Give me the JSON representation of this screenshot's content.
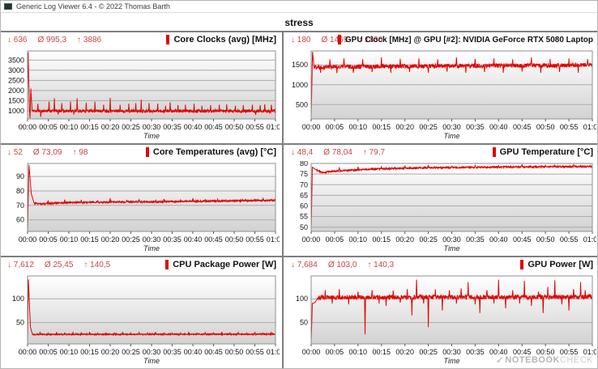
{
  "window": {
    "title": "Generic Log Viewer 6.4 - © 2022 Thomas Barth"
  },
  "page_title": "stress",
  "watermark": {
    "check": "✓",
    "text_bold": "NOTEBOOK",
    "text_light": "CHECK"
  },
  "colors": {
    "accent_red": "#e10600",
    "stats_red": "#c94444",
    "line_red": "#e00400",
    "grid": "#ababab",
    "plot_border": "#8f8f8f",
    "divider": "#7f7f7f",
    "watermark_gray": "#c2c2c2"
  },
  "chart_data": [
    {
      "type": "line",
      "title": "Core Clocks (avg) [MHz]",
      "stats": {
        "min": "↓ 636",
        "avg": "Ø 995,3",
        "max": "↑ 3886"
      },
      "xlabel": "Time",
      "ylabel": "",
      "x_range_minutes": [
        0,
        60
      ],
      "xticks": [
        "00:00",
        "00:05",
        "00:10",
        "00:15",
        "00:20",
        "00:25",
        "00:30",
        "00:35",
        "00:40",
        "00:45",
        "00:50",
        "00:55",
        "01:00"
      ],
      "yticks": [
        1000,
        1500,
        2000,
        2500,
        3000,
        3500
      ],
      "ylim": [
        600,
        3950
      ],
      "profile": {
        "seed": 11,
        "noise": 75,
        "noise_start": 1.1,
        "keypoints": [
          [
            0,
            1990
          ],
          [
            0.15,
            3886
          ],
          [
            0.45,
            1100
          ],
          [
            0.6,
            636
          ],
          [
            0.8,
            2100
          ],
          [
            1.1,
            1000
          ],
          [
            60,
            985
          ]
        ],
        "spikes": [
          [
            2.5,
            1350
          ],
          [
            3.2,
            700
          ],
          [
            5.2,
            1450
          ],
          [
            6.5,
            1620
          ],
          [
            7.4,
            820
          ],
          [
            8.3,
            1380
          ],
          [
            10.4,
            1450
          ],
          [
            11.2,
            820
          ],
          [
            12,
            1620
          ],
          [
            14.2,
            1400
          ],
          [
            16.3,
            1450
          ],
          [
            18.4,
            1300
          ],
          [
            20,
            1640
          ],
          [
            22.4,
            1300
          ],
          [
            24.5,
            1350
          ],
          [
            26.2,
            1380
          ],
          [
            27.5,
            1550
          ],
          [
            29.4,
            1380
          ],
          [
            31.5,
            1350
          ],
          [
            33.4,
            1250
          ],
          [
            34.5,
            1420
          ],
          [
            36.4,
            1280
          ],
          [
            38.2,
            1300
          ],
          [
            40.3,
            1350
          ],
          [
            42.2,
            1250
          ],
          [
            44.3,
            1280
          ],
          [
            46.4,
            1300
          ],
          [
            48.2,
            1320
          ],
          [
            50.3,
            1250
          ],
          [
            52.2,
            1280
          ],
          [
            54.4,
            1300
          ],
          [
            55.2,
            800
          ],
          [
            56.3,
            1280
          ],
          [
            57.4,
            1320
          ],
          [
            59,
            1300
          ]
        ]
      }
    },
    {
      "type": "line",
      "title": "GPU Clock [MHz] @ GPU [#2]: NVIDIA GeForce RTX 5080 Laptop",
      "stats": {
        "min": "↓ 180",
        "avg": "Ø 1469",
        "max": "↑ 1830"
      },
      "xlabel": "Time",
      "ylabel": "",
      "x_range_minutes": [
        0,
        60
      ],
      "xticks": [
        "00:00",
        "00:05",
        "00:10",
        "00:15",
        "00:20",
        "00:25",
        "00:30",
        "00:35",
        "00:40",
        "00:45",
        "00:50",
        "00:55",
        "01:00"
      ],
      "yticks": [
        500,
        1000,
        1500
      ],
      "ylim": [
        140,
        1850
      ],
      "profile": {
        "seed": 22,
        "noise": 55,
        "noise_start": 0.6,
        "keypoints": [
          [
            0,
            180
          ],
          [
            0.3,
            1830
          ],
          [
            0.6,
            1450
          ],
          [
            60,
            1495
          ]
        ],
        "spikes": [
          [
            2,
            1300
          ],
          [
            4,
            1640
          ],
          [
            5.5,
            1290
          ],
          [
            7,
            1660
          ],
          [
            9,
            1300
          ],
          [
            11,
            1640
          ],
          [
            13,
            1320
          ],
          [
            15,
            1690
          ],
          [
            17,
            1300
          ],
          [
            19,
            1650
          ],
          [
            21,
            1320
          ],
          [
            23,
            1660
          ],
          [
            25,
            1300
          ],
          [
            27,
            1640
          ],
          [
            29,
            1330
          ],
          [
            31,
            1690
          ],
          [
            33,
            1300
          ],
          [
            35,
            1650
          ],
          [
            37,
            1320
          ],
          [
            39,
            1660
          ],
          [
            41,
            1300
          ],
          [
            43,
            1640
          ],
          [
            45,
            1330
          ],
          [
            47,
            1690
          ],
          [
            49,
            1300
          ],
          [
            51,
            1650
          ],
          [
            53,
            1320
          ],
          [
            55,
            1660
          ],
          [
            57,
            1300
          ],
          [
            59,
            1640
          ]
        ]
      }
    },
    {
      "type": "line",
      "title": "Core Temperatures (avg) [°C]",
      "stats": {
        "min": "↓ 52",
        "avg": "Ø 73,09",
        "max": "↑ 98"
      },
      "xlabel": "Time",
      "ylabel": "",
      "x_range_minutes": [
        0,
        60
      ],
      "xticks": [
        "00:00",
        "00:05",
        "00:10",
        "00:15",
        "00:20",
        "00:25",
        "00:30",
        "00:35",
        "00:40",
        "00:45",
        "00:50",
        "00:55",
        "01:00"
      ],
      "yticks": [
        60,
        70,
        80,
        90
      ],
      "ylim": [
        52,
        99
      ],
      "profile": {
        "seed": 33,
        "noise": 0.55,
        "noise_start": 1.6,
        "keypoints": [
          [
            0,
            52
          ],
          [
            0.35,
            98
          ],
          [
            0.9,
            78
          ],
          [
            1.6,
            71.5
          ],
          [
            3,
            71
          ],
          [
            10,
            72
          ],
          [
            30,
            72.5
          ],
          [
            60,
            73.5
          ]
        ],
        "spikes": [
          [
            5,
            73.5
          ],
          [
            9,
            74
          ],
          [
            13,
            73.8
          ],
          [
            17,
            73.5
          ],
          [
            20,
            75
          ],
          [
            24,
            73.8
          ],
          [
            27,
            74
          ],
          [
            31,
            73.6
          ],
          [
            33,
            74.5
          ],
          [
            37,
            73.8
          ],
          [
            40,
            75
          ],
          [
            43,
            74
          ],
          [
            46,
            74.2
          ],
          [
            49,
            73.8
          ],
          [
            52,
            74.5
          ],
          [
            55,
            74
          ],
          [
            57,
            74.8
          ],
          [
            59,
            74.2
          ]
        ]
      }
    },
    {
      "type": "line",
      "title": "GPU Temperature [°C]",
      "stats": {
        "min": "↓ 48,4",
        "avg": "Ø 78,04",
        "max": "↑ 79,7"
      },
      "xlabel": "Time",
      "ylabel": "",
      "x_range_minutes": [
        0,
        60
      ],
      "xticks": [
        "00:00",
        "00:05",
        "00:10",
        "00:15",
        "00:20",
        "00:25",
        "00:30",
        "00:35",
        "00:40",
        "00:45",
        "00:50",
        "00:55",
        "01:00"
      ],
      "yticks": [
        50,
        55,
        60,
        65,
        70,
        75,
        80
      ],
      "ylim": [
        48,
        80
      ],
      "profile": {
        "seed": 44,
        "noise": 0.4,
        "noise_start": 1.2,
        "keypoints": [
          [
            0,
            48.4
          ],
          [
            0.25,
            78.2
          ],
          [
            1.2,
            76.8
          ],
          [
            2.5,
            75.7
          ],
          [
            4,
            76.2
          ],
          [
            8,
            76.8
          ],
          [
            15,
            77.5
          ],
          [
            25,
            78
          ],
          [
            40,
            78.3
          ],
          [
            60,
            78.6
          ]
        ],
        "spikes": [
          [
            6,
            78.2
          ],
          [
            10,
            78.5
          ],
          [
            15,
            78.8
          ],
          [
            20,
            79
          ],
          [
            25,
            79.3
          ],
          [
            30,
            78.8
          ],
          [
            35,
            79
          ],
          [
            40,
            79.2
          ],
          [
            45,
            79.7
          ],
          [
            50,
            79
          ],
          [
            52,
            79.2
          ],
          [
            56,
            79.4
          ],
          [
            58,
            79
          ]
        ]
      }
    },
    {
      "type": "line",
      "title": "CPU Package Power [W]",
      "stats": {
        "min": "↓ 7,612",
        "avg": "Ø 25,45",
        "max": "↑ 140,5"
      },
      "xlabel": "Time",
      "ylabel": "",
      "x_range_minutes": [
        0,
        60
      ],
      "xticks": [
        "00:00",
        "00:05",
        "00:10",
        "00:15",
        "00:20",
        "00:25",
        "00:30",
        "00:35",
        "00:40",
        "00:45",
        "00:50",
        "00:55",
        "01:00"
      ],
      "yticks": [
        50,
        100
      ],
      "ylim": [
        5,
        148
      ],
      "profile": {
        "seed": 55,
        "noise": 1.1,
        "noise_start": 1.2,
        "keypoints": [
          [
            0,
            7.6
          ],
          [
            0.2,
            140.5
          ],
          [
            0.7,
            40
          ],
          [
            1.2,
            25
          ],
          [
            60,
            25.5
          ]
        ],
        "spikes": [
          [
            3,
            29
          ],
          [
            5,
            28
          ],
          [
            7,
            30
          ],
          [
            9,
            28
          ],
          [
            11,
            29
          ],
          [
            13,
            28
          ],
          [
            15,
            30
          ],
          [
            17,
            28
          ],
          [
            19,
            29
          ],
          [
            21,
            28
          ],
          [
            23,
            30
          ],
          [
            25,
            28
          ],
          [
            27,
            29
          ],
          [
            29,
            28
          ],
          [
            31,
            30
          ],
          [
            33,
            28
          ],
          [
            35,
            29
          ],
          [
            37,
            28
          ],
          [
            39,
            30
          ],
          [
            41,
            28
          ],
          [
            43,
            29
          ],
          [
            45,
            28
          ],
          [
            47,
            30
          ],
          [
            49,
            28
          ],
          [
            51,
            29
          ],
          [
            53,
            28
          ],
          [
            55,
            30
          ],
          [
            57,
            28
          ],
          [
            59,
            29
          ]
        ]
      }
    },
    {
      "type": "line",
      "title": "GPU Power [W]",
      "stats": {
        "min": "↓ 7,684",
        "avg": "Ø 103,0",
        "max": "↑ 140,3"
      },
      "xlabel": "Time",
      "ylabel": "",
      "x_range_minutes": [
        0,
        60
      ],
      "xticks": [
        "00:00",
        "00:05",
        "00:10",
        "00:15",
        "00:20",
        "00:25",
        "00:30",
        "00:35",
        "00:40",
        "00:45",
        "00:50",
        "00:55",
        "01:00"
      ],
      "yticks": [
        50,
        100
      ],
      "ylim": [
        5,
        148
      ],
      "profile": {
        "seed": 66,
        "noise": 4.5,
        "noise_start": 1.5,
        "keypoints": [
          [
            0,
            7.7
          ],
          [
            0.25,
            90
          ],
          [
            0.8,
            92
          ],
          [
            1.5,
            103
          ],
          [
            60,
            104
          ]
        ],
        "spikes": [
          [
            3,
            118
          ],
          [
            4.5,
            90
          ],
          [
            6,
            120
          ],
          [
            8,
            88
          ],
          [
            10,
            115
          ],
          [
            11.5,
            25
          ],
          [
            13,
            118
          ],
          [
            14.5,
            90
          ],
          [
            16,
            85
          ],
          [
            17.5,
            117
          ],
          [
            19,
            92
          ],
          [
            20.5,
            120
          ],
          [
            21.5,
            65
          ],
          [
            22.5,
            140
          ],
          [
            24,
            90
          ],
          [
            25,
            40
          ],
          [
            26.5,
            120
          ],
          [
            28,
            75
          ],
          [
            29.5,
            118
          ],
          [
            31,
            90
          ],
          [
            32,
            122
          ],
          [
            33.5,
            135
          ],
          [
            35,
            88
          ],
          [
            36,
            70
          ],
          [
            37.5,
            118
          ],
          [
            39,
            90
          ],
          [
            40,
            140
          ],
          [
            41.5,
            80
          ],
          [
            43,
            118
          ],
          [
            44.5,
            90
          ],
          [
            45.5,
            138
          ],
          [
            47,
            85
          ],
          [
            48.5,
            115
          ],
          [
            49.5,
            70
          ],
          [
            50.5,
            125
          ],
          [
            52,
            139
          ],
          [
            53.5,
            88
          ],
          [
            55,
            75
          ],
          [
            56,
            120
          ],
          [
            57.5,
            135
          ],
          [
            58.5,
            118
          ],
          [
            59.5,
            110
          ]
        ]
      }
    }
  ]
}
